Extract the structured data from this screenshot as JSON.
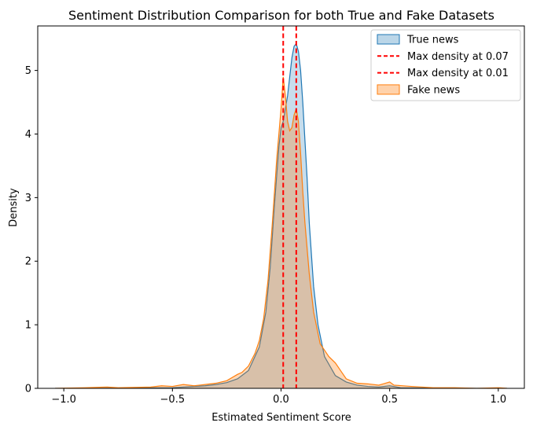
{
  "chart_data": {
    "type": "area",
    "title": "Sentiment Distribution Comparison for both True and Fake Datasets",
    "xlabel": "Estimated Sentiment Score",
    "ylabel": "Density",
    "xlim": [
      -1.12,
      1.12
    ],
    "ylim": [
      0,
      5.7
    ],
    "xticks": [
      -1.0,
      -0.5,
      0.0,
      0.5,
      1.0
    ],
    "xtick_labels": [
      "−1.0",
      "−0.5",
      "0.0",
      "0.5",
      "1.0"
    ],
    "yticks": [
      0,
      1,
      2,
      3,
      4,
      5
    ],
    "ytick_labels": [
      "0",
      "1",
      "2",
      "3",
      "4",
      "5"
    ],
    "grid": false,
    "legend_position": "top-right",
    "series": [
      {
        "name": "True news",
        "kind": "kde-fill",
        "line_color": "#1f77b4",
        "fill_color": "#1f77b4",
        "fill_opacity": 0.25,
        "points": [
          [
            -1.04,
            0.0
          ],
          [
            -0.9,
            0.0
          ],
          [
            -0.7,
            0.005
          ],
          [
            -0.5,
            0.01
          ],
          [
            -0.45,
            0.02
          ],
          [
            -0.4,
            0.03
          ],
          [
            -0.35,
            0.04
          ],
          [
            -0.3,
            0.06
          ],
          [
            -0.25,
            0.09
          ],
          [
            -0.2,
            0.15
          ],
          [
            -0.15,
            0.28
          ],
          [
            -0.1,
            0.65
          ],
          [
            -0.07,
            1.2
          ],
          [
            -0.05,
            1.9
          ],
          [
            -0.03,
            2.9
          ],
          [
            -0.01,
            3.8
          ],
          [
            0.0,
            4.1
          ],
          [
            0.01,
            4.2
          ],
          [
            0.02,
            4.4
          ],
          [
            0.03,
            4.6
          ],
          [
            0.04,
            4.9
          ],
          [
            0.05,
            5.2
          ],
          [
            0.06,
            5.38
          ],
          [
            0.07,
            5.42
          ],
          [
            0.08,
            5.3
          ],
          [
            0.09,
            5.0
          ],
          [
            0.1,
            4.5
          ],
          [
            0.11,
            3.9
          ],
          [
            0.12,
            3.3
          ],
          [
            0.13,
            2.6
          ],
          [
            0.15,
            1.6
          ],
          [
            0.17,
            1.0
          ],
          [
            0.2,
            0.5
          ],
          [
            0.25,
            0.2
          ],
          [
            0.3,
            0.1
          ],
          [
            0.35,
            0.05
          ],
          [
            0.4,
            0.03
          ],
          [
            0.45,
            0.02
          ],
          [
            0.5,
            0.04
          ],
          [
            0.55,
            0.01
          ],
          [
            0.7,
            0.005
          ],
          [
            0.9,
            0.0
          ],
          [
            1.04,
            0.0
          ]
        ]
      },
      {
        "name": "Fake news",
        "kind": "kde-fill",
        "line_color": "#ff7f0e",
        "fill_color": "#ff7f0e",
        "fill_opacity": 0.3,
        "points": [
          [
            -1.04,
            0.0
          ],
          [
            -0.9,
            0.01
          ],
          [
            -0.8,
            0.02
          ],
          [
            -0.75,
            0.01
          ],
          [
            -0.6,
            0.02
          ],
          [
            -0.55,
            0.04
          ],
          [
            -0.5,
            0.03
          ],
          [
            -0.45,
            0.06
          ],
          [
            -0.4,
            0.04
          ],
          [
            -0.35,
            0.06
          ],
          [
            -0.3,
            0.08
          ],
          [
            -0.25,
            0.12
          ],
          [
            -0.2,
            0.22
          ],
          [
            -0.18,
            0.25
          ],
          [
            -0.15,
            0.35
          ],
          [
            -0.12,
            0.55
          ],
          [
            -0.1,
            0.75
          ],
          [
            -0.08,
            1.1
          ],
          [
            -0.06,
            1.7
          ],
          [
            -0.04,
            2.6
          ],
          [
            -0.02,
            3.6
          ],
          [
            0.0,
            4.4
          ],
          [
            0.01,
            4.9
          ],
          [
            0.02,
            4.6
          ],
          [
            0.03,
            4.2
          ],
          [
            0.04,
            4.05
          ],
          [
            0.05,
            4.1
          ],
          [
            0.06,
            4.3
          ],
          [
            0.07,
            4.4
          ],
          [
            0.08,
            4.2
          ],
          [
            0.09,
            3.7
          ],
          [
            0.1,
            3.1
          ],
          [
            0.11,
            2.6
          ],
          [
            0.13,
            1.8
          ],
          [
            0.15,
            1.2
          ],
          [
            0.18,
            0.7
          ],
          [
            0.2,
            0.6
          ],
          [
            0.22,
            0.5
          ],
          [
            0.25,
            0.4
          ],
          [
            0.28,
            0.25
          ],
          [
            0.3,
            0.15
          ],
          [
            0.35,
            0.08
          ],
          [
            0.4,
            0.07
          ],
          [
            0.45,
            0.05
          ],
          [
            0.48,
            0.08
          ],
          [
            0.5,
            0.1
          ],
          [
            0.52,
            0.05
          ],
          [
            0.6,
            0.03
          ],
          [
            0.7,
            0.01
          ],
          [
            0.8,
            0.01
          ],
          [
            0.9,
            0.0
          ],
          [
            1.0,
            0.01
          ],
          [
            1.04,
            0.0
          ]
        ]
      }
    ],
    "vlines": [
      {
        "label": "Max density at 0.07",
        "x": 0.07,
        "color": "#ff0000",
        "style": "dashed"
      },
      {
        "label": "Max density at 0.01",
        "x": 0.01,
        "color": "#ff0000",
        "style": "dashed"
      }
    ],
    "legend_order": [
      {
        "label": "True news",
        "kind": "patch",
        "ref": "True news"
      },
      {
        "label": "Max density at 0.07",
        "kind": "line",
        "ref": 0
      },
      {
        "label": "Max density at 0.01",
        "kind": "line",
        "ref": 1
      },
      {
        "label": "Fake news",
        "kind": "patch",
        "ref": "Fake news"
      }
    ]
  }
}
